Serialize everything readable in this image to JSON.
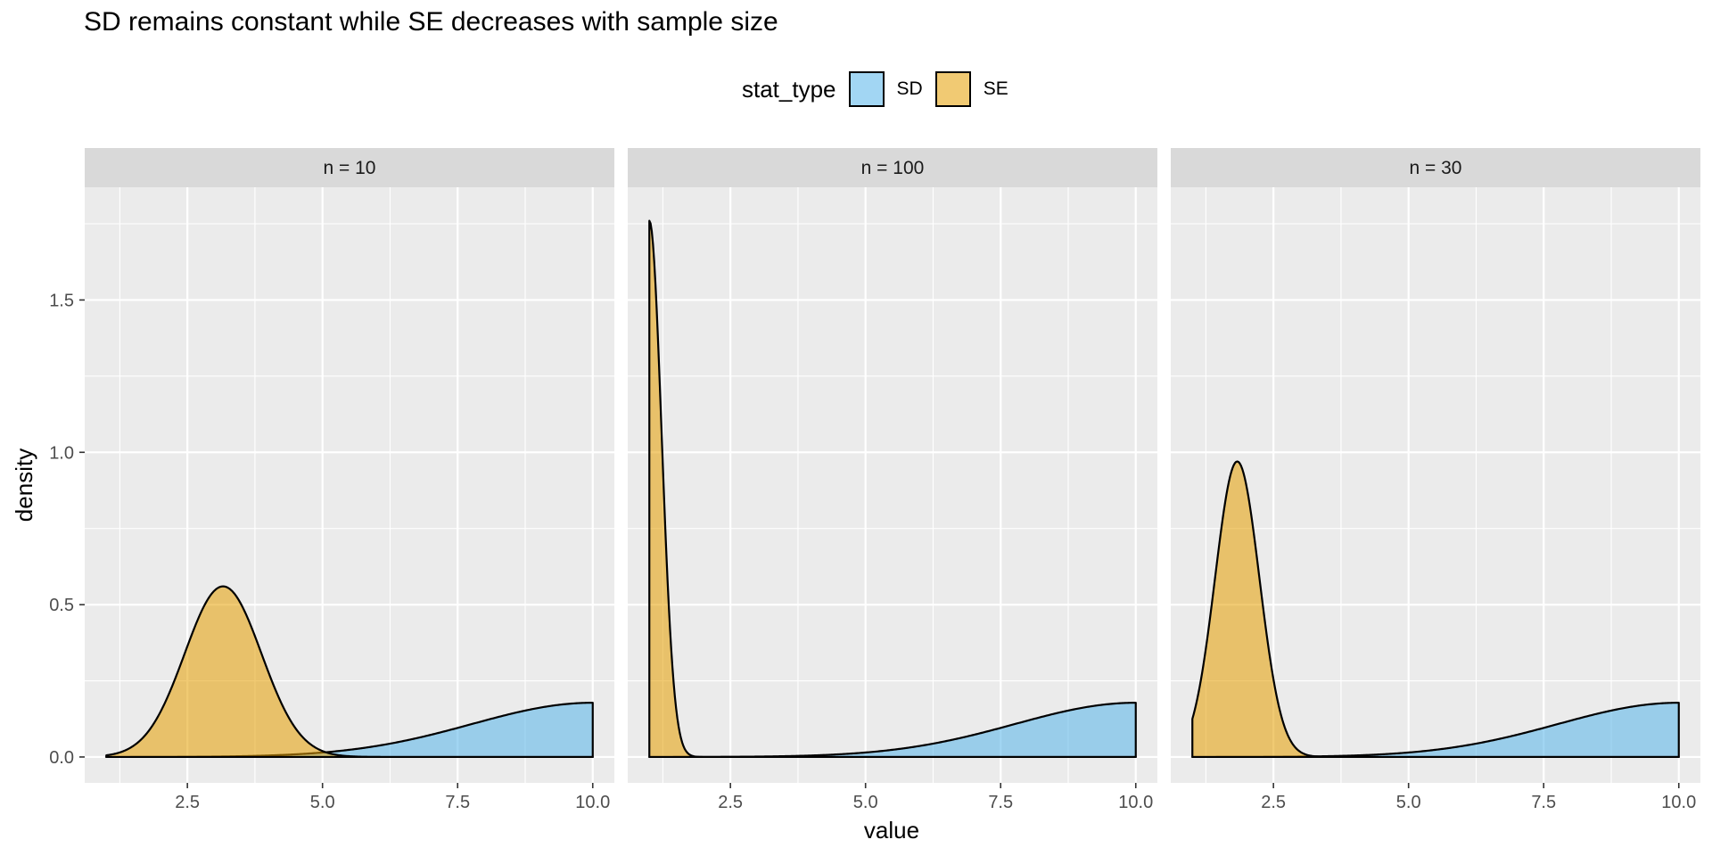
{
  "chart_data": {
    "type": "area",
    "title": "SD remains constant while SE decreases with sample size",
    "xlabel": "value",
    "ylabel": "density",
    "legend": {
      "title": "stat_type",
      "position": "top"
    },
    "colors": {
      "SD": "#56B4E9",
      "SE": "#E69F00"
    },
    "xlim": [
      0.6,
      10.4
    ],
    "ylim": [
      -0.085,
      1.87
    ],
    "x_ticks": [
      2.5,
      5.0,
      7.5,
      10.0
    ],
    "x_tick_labels": [
      "2.5",
      "5.0",
      "7.5",
      "10.0"
    ],
    "y_ticks": [
      0.0,
      0.5,
      1.0,
      1.5
    ],
    "y_tick_labels": [
      "0.0",
      "0.5",
      "1.0",
      "1.5"
    ],
    "grid": true,
    "series": [
      {
        "name": "SD",
        "panels": [
          {
            "panel": "n = 10",
            "x": [
              1,
              2,
              3,
              4,
              5,
              6,
              7,
              8,
              9,
              10
            ],
            "values": [
              0.0,
              0.0,
              0.003,
              0.006,
              0.017,
              0.04,
              0.073,
              0.11,
              0.155,
              0.178
            ]
          },
          {
            "panel": "n = 100",
            "x": [
              1,
              2,
              3,
              4,
              5,
              6,
              7,
              8,
              9,
              10
            ],
            "values": [
              0.0,
              0.0,
              0.003,
              0.006,
              0.017,
              0.04,
              0.073,
              0.11,
              0.155,
              0.178
            ]
          },
          {
            "panel": "n = 30",
            "x": [
              1,
              2,
              3,
              4,
              5,
              6,
              7,
              8,
              9,
              10
            ],
            "values": [
              0.0,
              0.0,
              0.003,
              0.006,
              0.017,
              0.04,
              0.073,
              0.11,
              0.155,
              0.178
            ]
          }
        ]
      },
      {
        "name": "SE",
        "panels": [
          {
            "panel": "n = 10",
            "x": [
              1,
              1.5,
              2,
              2.5,
              3.16,
              3.5,
              4,
              4.5,
              5
            ],
            "values": [
              0.005,
              0.03,
              0.15,
              0.36,
              0.56,
              0.51,
              0.3,
              0.1,
              0.02
            ]
          },
          {
            "panel": "n = 100",
            "x": [
              1,
              1.1,
              1.2,
              1.3,
              1.4,
              1.5,
              1.7
            ],
            "values": [
              1.76,
              1.5,
              0.8,
              0.3,
              0.08,
              0.02,
              0.0
            ]
          },
          {
            "panel": "n = 30",
            "x": [
              1,
              1.4,
              1.83,
              2.2,
              2.5,
              2.8,
              3.2
            ],
            "values": [
              0.135,
              0.6,
              0.97,
              0.75,
              0.38,
              0.1,
              0.0
            ]
          }
        ]
      }
    ],
    "panels": [
      {
        "label": "n = 10",
        "sd": {
          "mean": 10,
          "sd": 2.24,
          "peak": 0.178
        },
        "se": {
          "mean": 3.16,
          "sd": 0.71,
          "peak": 0.56
        }
      },
      {
        "label": "n = 100",
        "sd": {
          "mean": 10,
          "sd": 2.24,
          "peak": 0.178
        },
        "se": {
          "mean": 1.0,
          "sd": 0.226,
          "peak": 1.76
        }
      },
      {
        "label": "n = 30",
        "sd": {
          "mean": 10,
          "sd": 2.24,
          "peak": 0.178
        },
        "se": {
          "mean": 1.83,
          "sd": 0.41,
          "peak": 0.97
        }
      }
    ],
    "domain": [
      1,
      10
    ]
  }
}
